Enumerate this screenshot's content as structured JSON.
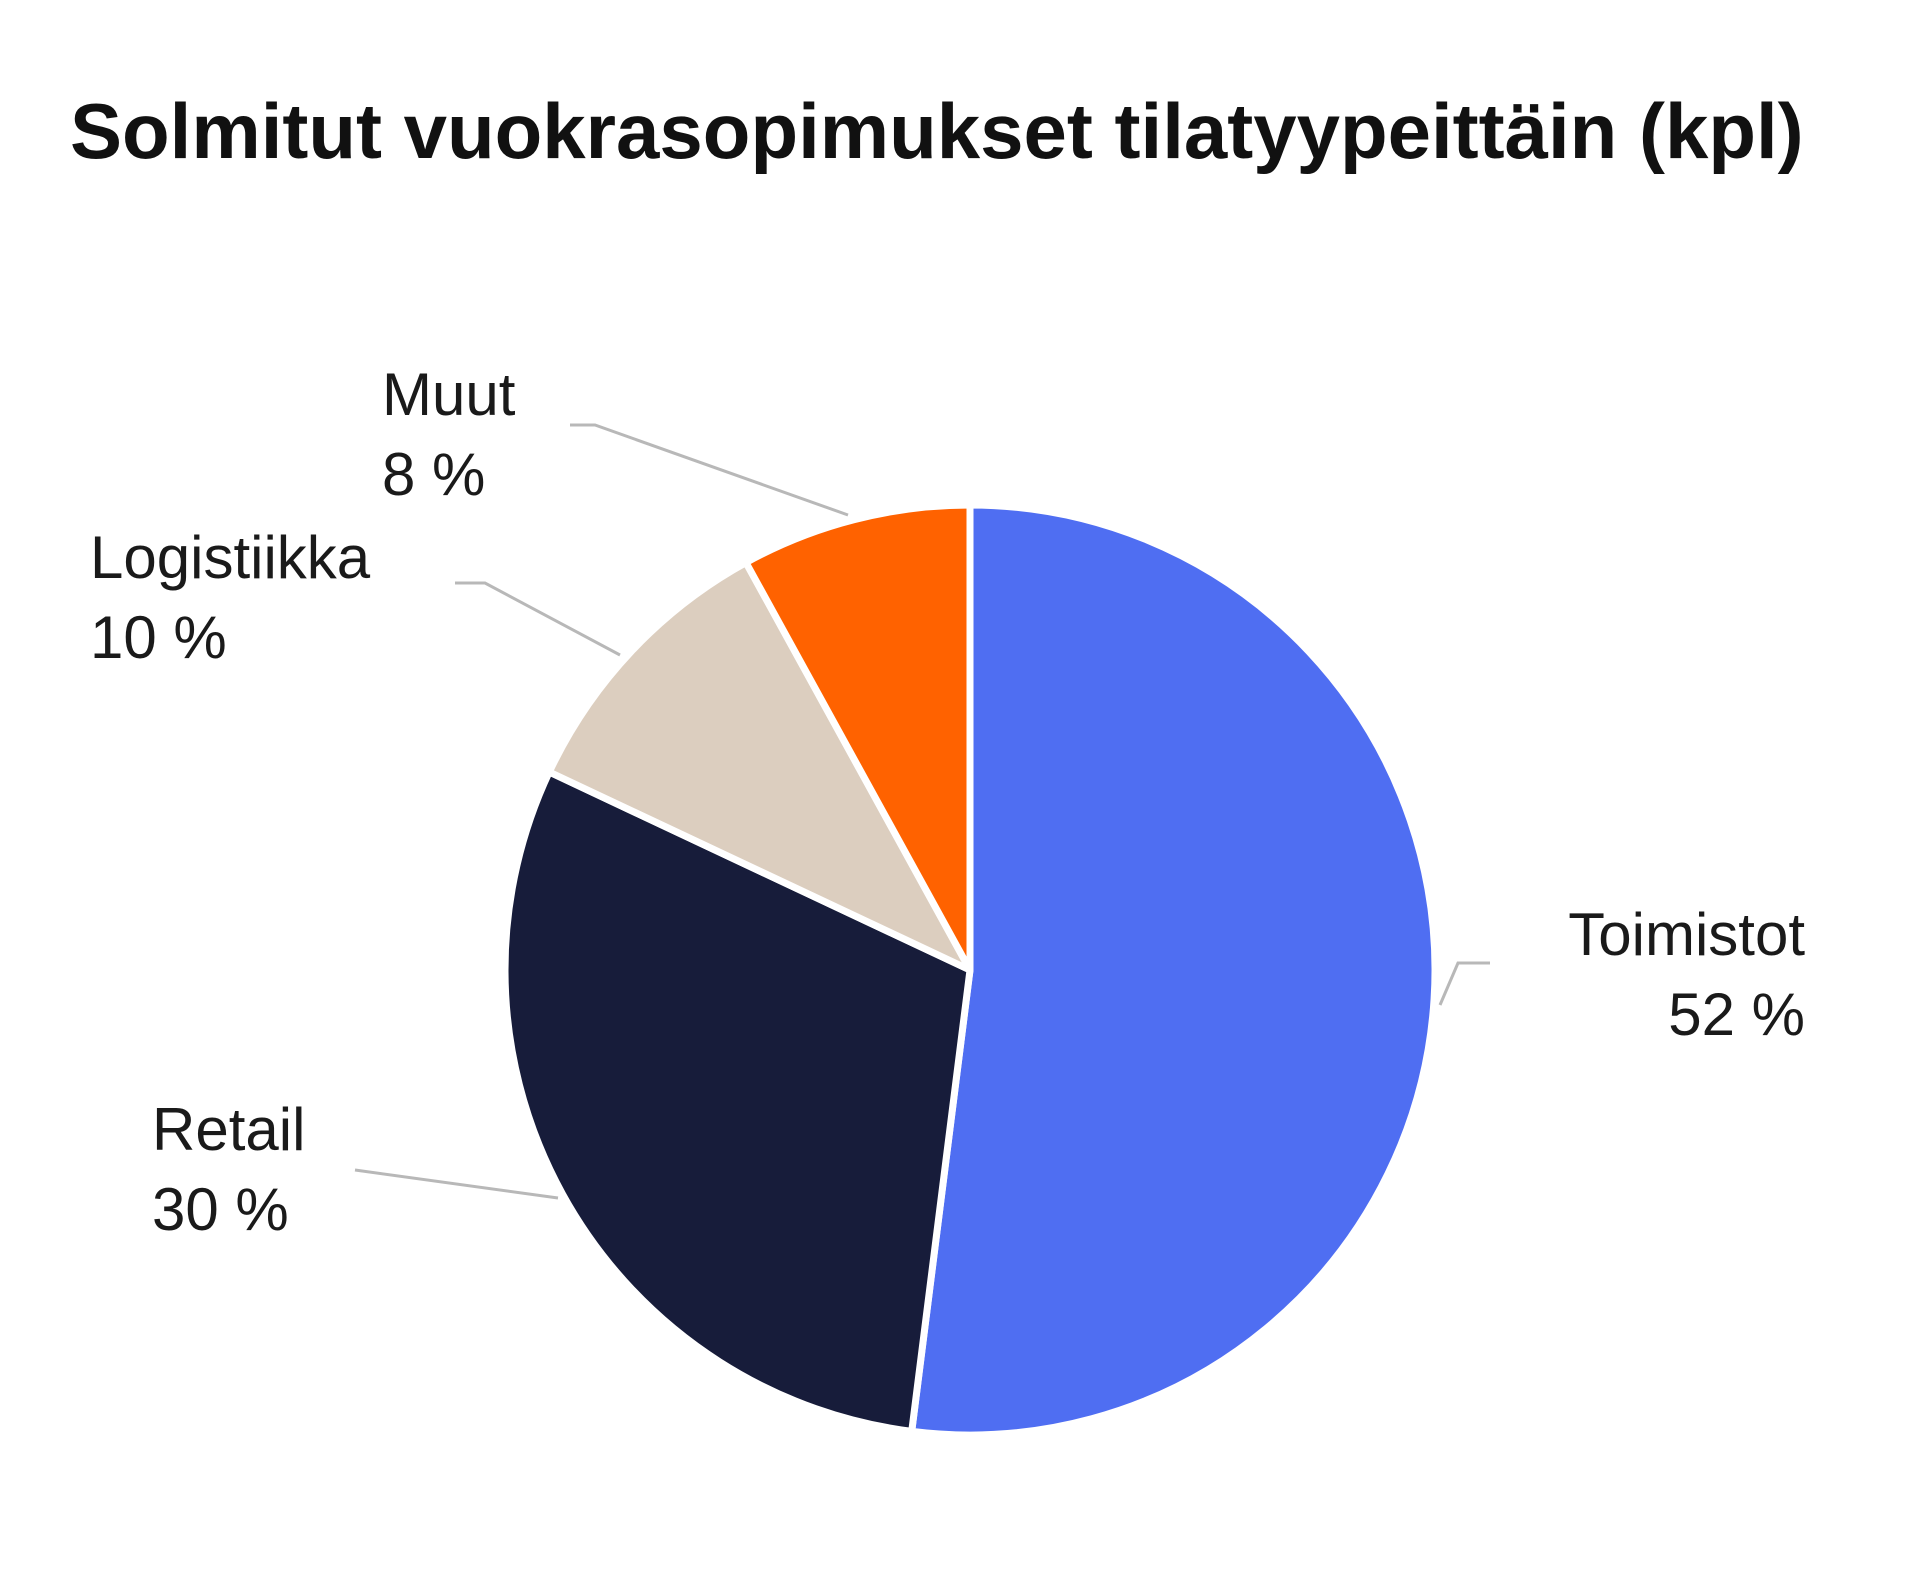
{
  "chart_data": {
    "type": "pie",
    "title": "Solmitut vuokrasopimukset tilatyypeittäin (kpl)",
    "unit": "%",
    "start_angle_deg": 0,
    "direction": "clockwise",
    "slices": [
      {
        "label": "Toimistot",
        "value": 52,
        "value_text": "52 %",
        "color": "#4f6ef2"
      },
      {
        "label": "Retail",
        "value": 30,
        "value_text": "30 %",
        "color": "#171c3a"
      },
      {
        "label": "Logistiikka",
        "value": 10,
        "value_text": "10 %",
        "color": "#dccebf"
      },
      {
        "label": "Muut",
        "value": 8,
        "value_text": "8 %",
        "color": "#ff6200"
      }
    ]
  }
}
